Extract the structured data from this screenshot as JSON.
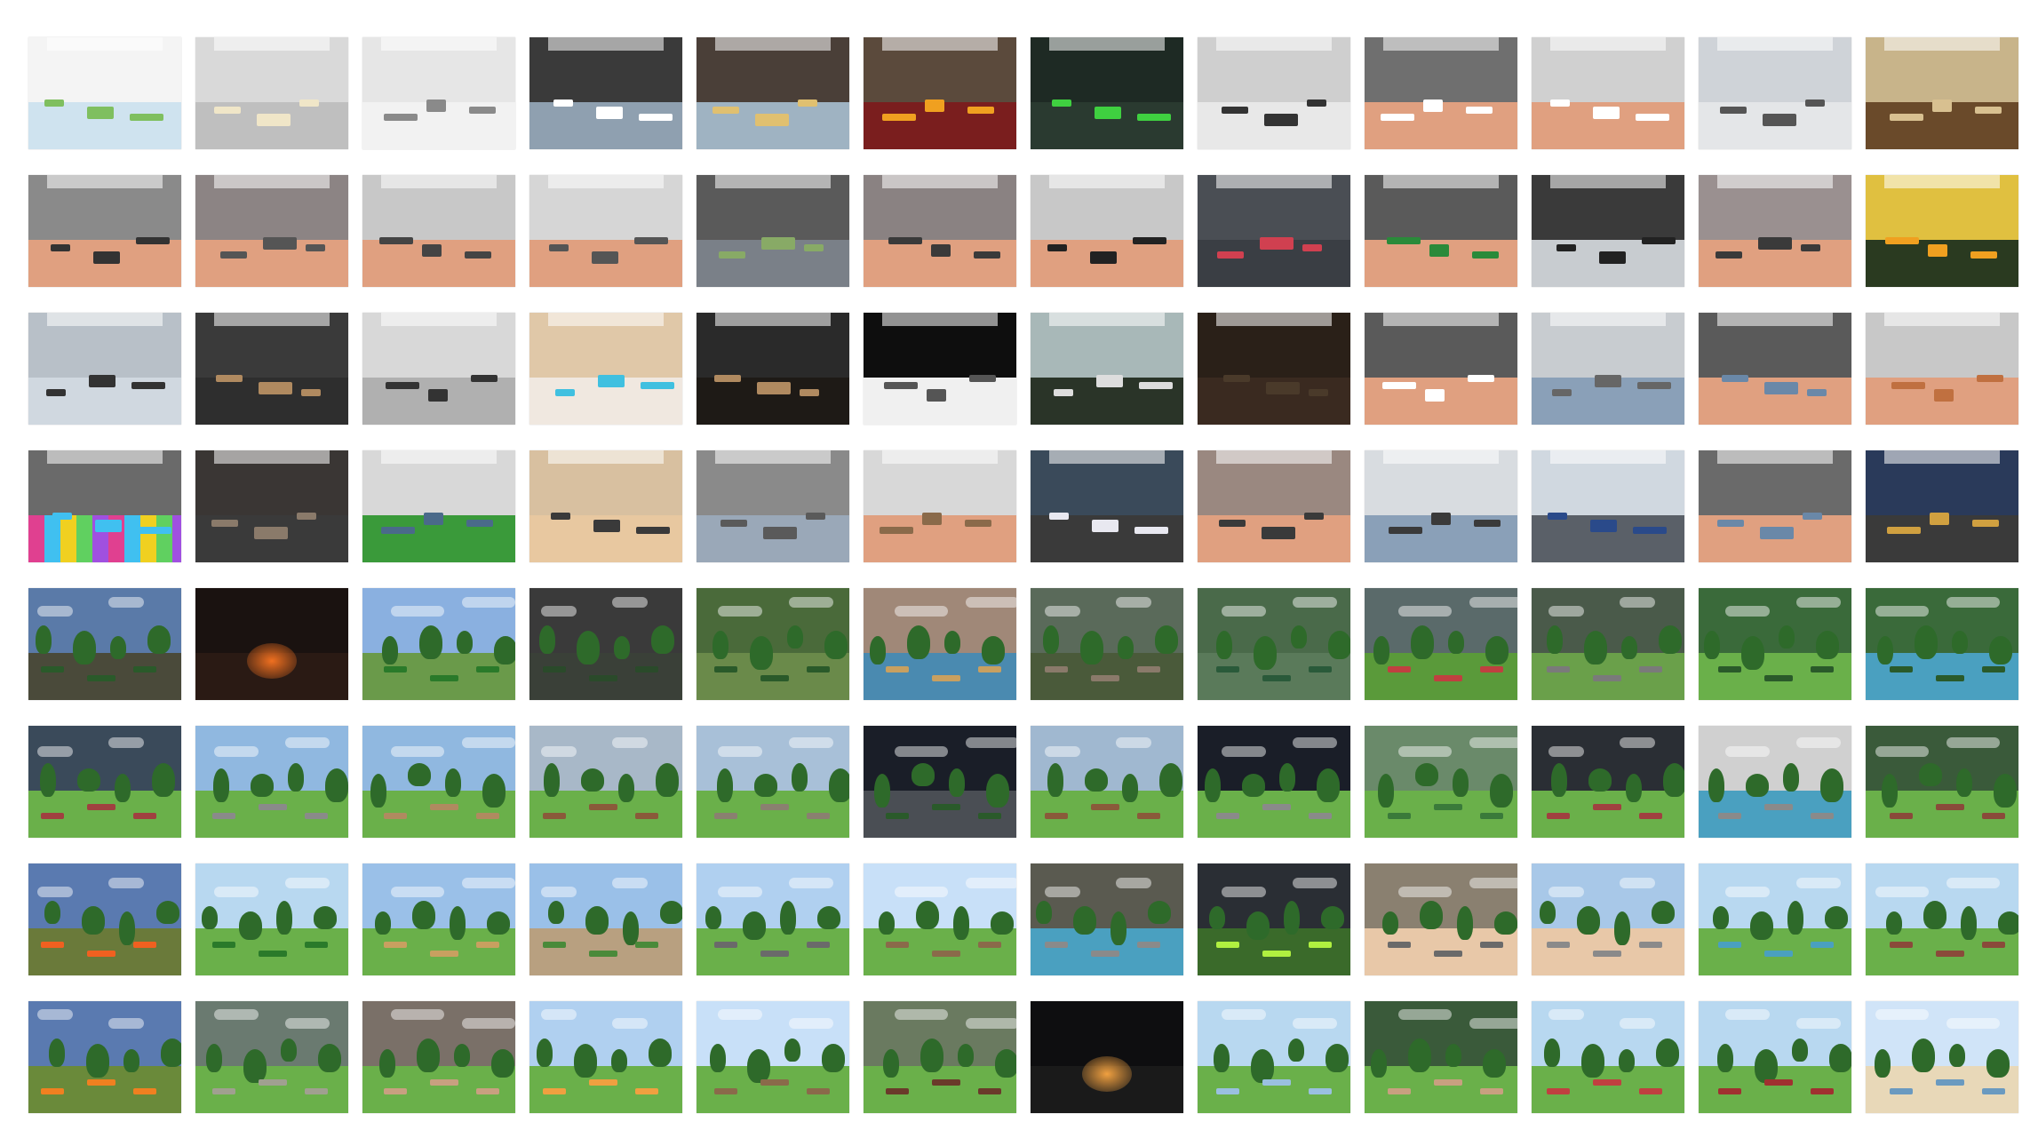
{
  "grid": {
    "rows": 8,
    "cols": 12,
    "row_themes": [
      "indoor-furnished-rooms",
      "indoor-wood-floor-rooms",
      "indoor-halls-and-pools",
      "indoor-mixed-floor-halls",
      "outdoor-forest-scenes",
      "outdoor-park-scenes",
      "outdoor-open-landscapes",
      "outdoor-campfire-and-picnic-scenes"
    ],
    "thumbnails": [
      [
        {
          "sky": "#f4f4f4",
          "ground": "#cfe3ef",
          "accent": "#7fbf5f",
          "kind": "indoor"
        },
        {
          "sky": "#d9d9d9",
          "ground": "#bfbfbf",
          "accent": "#f0e6c8",
          "kind": "indoor"
        },
        {
          "sky": "#e6e6e6",
          "ground": "#f2f2f2",
          "accent": "#8a8a8a",
          "kind": "indoor"
        },
        {
          "sky": "#3a3a3a",
          "ground": "#8fa0b0",
          "accent": "#ffffff",
          "kind": "indoor"
        },
        {
          "sky": "#4a3f38",
          "ground": "#9fb3c2",
          "accent": "#e0c070",
          "kind": "indoor"
        },
        {
          "sky": "#5b4a3c",
          "ground": "#7a1e1e",
          "accent": "#f0a020",
          "kind": "indoor"
        },
        {
          "sky": "#1e2a24",
          "ground": "#2a3a30",
          "accent": "#3fd040",
          "kind": "indoor"
        },
        {
          "sky": "#cfcfcf",
          "ground": "#e8e8e8",
          "accent": "#333333",
          "kind": "indoor"
        },
        {
          "sky": "#6f6f6f",
          "ground": "#e0a080",
          "accent": "#ffffff",
          "kind": "indoor"
        },
        {
          "sky": "#d0d0d0",
          "ground": "#e0a080",
          "accent": "#ffffff",
          "kind": "indoor"
        },
        {
          "sky": "#cfd3d8",
          "ground": "#e4e6e8",
          "accent": "#555555",
          "kind": "indoor"
        },
        {
          "sky": "#c8b48a",
          "ground": "#6a4a2a",
          "accent": "#d8c090",
          "kind": "indoor"
        }
      ],
      [
        {
          "sky": "#8a8a8a",
          "ground": "#e0a080",
          "accent": "#333333",
          "kind": "indoor"
        },
        {
          "sky": "#8c8484",
          "ground": "#e0a080",
          "accent": "#555555",
          "kind": "indoor"
        },
        {
          "sky": "#c8c8c8",
          "ground": "#e0a080",
          "accent": "#444444",
          "kind": "indoor"
        },
        {
          "sky": "#d6d6d6",
          "ground": "#e0a080",
          "accent": "#555555",
          "kind": "indoor"
        },
        {
          "sky": "#5a5a5a",
          "ground": "#7a8088",
          "accent": "#88aa66",
          "kind": "indoor"
        },
        {
          "sky": "#8a8282",
          "ground": "#e0a080",
          "accent": "#3a3a3a",
          "kind": "indoor"
        },
        {
          "sky": "#c8c8c8",
          "ground": "#e0a080",
          "accent": "#222222",
          "kind": "indoor"
        },
        {
          "sky": "#4a4e54",
          "ground": "#3a3e44",
          "accent": "#d04050",
          "kind": "indoor"
        },
        {
          "sky": "#5a5a5a",
          "ground": "#e0a080",
          "accent": "#2a8a3a",
          "kind": "indoor"
        },
        {
          "sky": "#3a3a3a",
          "ground": "#c8ccd0",
          "accent": "#222222",
          "kind": "indoor"
        },
        {
          "sky": "#9a9090",
          "ground": "#e0a080",
          "accent": "#3a3a3a",
          "kind": "indoor"
        },
        {
          "sky": "#e0c040",
          "ground": "#2a3a20",
          "accent": "#f0a020",
          "kind": "indoor"
        }
      ],
      [
        {
          "sky": "#b8c0c8",
          "ground": "#d0d8e0",
          "accent": "#333333",
          "kind": "indoor"
        },
        {
          "sky": "#3a3a3a",
          "ground": "#2e2e2e",
          "accent": "#b08a60",
          "kind": "indoor"
        },
        {
          "sky": "#d8d8d8",
          "ground": "#b0b0b0",
          "accent": "#333333",
          "kind": "indoor"
        },
        {
          "sky": "#e0c8a8",
          "ground": "#f0e8e0",
          "accent": "#40c0e0",
          "kind": "indoor"
        },
        {
          "sky": "#2a2a2a",
          "ground": "#1e1a16",
          "accent": "#b08a60",
          "kind": "indoor"
        },
        {
          "sky": "#0e0e0e",
          "ground": "#f0f0f0",
          "accent": "#555555",
          "kind": "indoor"
        },
        {
          "sky": "#a8b8b8",
          "ground": "#2a3428",
          "accent": "#dddddd",
          "kind": "indoor"
        },
        {
          "sky": "#2a2018",
          "ground": "#3a2a20",
          "accent": "#4a3a2a",
          "kind": "indoor"
        },
        {
          "sky": "#5a5a5a",
          "ground": "#e0a080",
          "accent": "#ffffff",
          "kind": "indoor"
        },
        {
          "sky": "#c8ccd0",
          "ground": "#8aa0b8",
          "accent": "#666666",
          "kind": "indoor"
        },
        {
          "sky": "#5a5a5a",
          "ground": "#e0a080",
          "accent": "#6a88a8",
          "kind": "indoor"
        },
        {
          "sky": "#c8c8c8",
          "ground": "#e0a080",
          "accent": "#c07040",
          "kind": "indoor"
        }
      ],
      [
        {
          "sky": "#6a6a6a",
          "ground": "#e05090",
          "accent": "#40c0f0",
          "kind": "checker"
        },
        {
          "sky": "#3a3634",
          "ground": "#3a3a3a",
          "accent": "#8a7a6a",
          "kind": "indoor"
        },
        {
          "sky": "#d8d8d8",
          "ground": "#3a9a3a",
          "accent": "#4a6a8a",
          "kind": "indoor"
        },
        {
          "sky": "#d8c0a0",
          "ground": "#e8c8a0",
          "accent": "#3a3a3a",
          "kind": "indoor"
        },
        {
          "sky": "#8a8a8a",
          "ground": "#9aa8b8",
          "accent": "#5a5a5a",
          "kind": "indoor"
        },
        {
          "sky": "#d8d8d8",
          "ground": "#e0a080",
          "accent": "#8a6a4a",
          "kind": "indoor"
        },
        {
          "sky": "#3a4a5a",
          "ground": "#3a3a3a",
          "accent": "#e8e8f0",
          "kind": "indoor"
        },
        {
          "sky": "#9a8880",
          "ground": "#e0a080",
          "accent": "#3a3a3a",
          "kind": "indoor"
        },
        {
          "sky": "#d8dce0",
          "ground": "#8aa0b8",
          "accent": "#3a3a3a",
          "kind": "indoor"
        },
        {
          "sky": "#d0d8e0",
          "ground": "#5a6068",
          "accent": "#2a4a8a",
          "kind": "indoor"
        },
        {
          "sky": "#6a6a6a",
          "ground": "#e0a080",
          "accent": "#6a88a8",
          "kind": "indoor"
        },
        {
          "sky": "#2a3a5a",
          "ground": "#3a3a3a",
          "accent": "#d0a040",
          "kind": "indoor"
        }
      ],
      [
        {
          "sky": "#5a7aa8",
          "ground": "#4a4a3a",
          "accent": "#2a5a2a",
          "kind": "outdoor"
        },
        {
          "sky": "#1a1210",
          "ground": "#2a1a14",
          "accent": "#f07020",
          "kind": "night"
        },
        {
          "sky": "#8ab0e0",
          "ground": "#6a9a4a",
          "accent": "#2a7a2a",
          "kind": "outdoor"
        },
        {
          "sky": "#3a3a3a",
          "ground": "#3a4038",
          "accent": "#2a4a2a",
          "kind": "outdoor"
        },
        {
          "sky": "#4a6a3a",
          "ground": "#6a8a4a",
          "accent": "#2a5a2a",
          "kind": "outdoor"
        },
        {
          "sky": "#a08878",
          "ground": "#4a8ab0",
          "accent": "#c8a060",
          "kind": "outdoor"
        },
        {
          "sky": "#5a6a5a",
          "ground": "#4a5a3a",
          "accent": "#8a7a6a",
          "kind": "outdoor"
        },
        {
          "sky": "#4a6a4a",
          "ground": "#5a7a5a",
          "accent": "#2a5a3a",
          "kind": "outdoor"
        },
        {
          "sky": "#5a6a6a",
          "ground": "#5a9a3a",
          "accent": "#c04040",
          "kind": "outdoor"
        },
        {
          "sky": "#4a5a4a",
          "ground": "#6aa04a",
          "accent": "#7a7a7a",
          "kind": "outdoor"
        },
        {
          "sky": "#3a6a3a",
          "ground": "#6ab04a",
          "accent": "#2a5a2a",
          "kind": "outdoor"
        },
        {
          "sky": "#3a6a3a",
          "ground": "#4aa0c0",
          "accent": "#2a5a2a",
          "kind": "outdoor"
        }
      ],
      [
        {
          "sky": "#3a4a5a",
          "ground": "#6ab04a",
          "accent": "#a04040",
          "kind": "outdoor"
        },
        {
          "sky": "#90b8e0",
          "ground": "#6ab04a",
          "accent": "#8a8a8a",
          "kind": "outdoor"
        },
        {
          "sky": "#90b8e0",
          "ground": "#6ab04a",
          "accent": "#b08a60",
          "kind": "outdoor"
        },
        {
          "sky": "#a8b8c8",
          "ground": "#6ab04a",
          "accent": "#8a5a3a",
          "kind": "outdoor"
        },
        {
          "sky": "#a8c0d8",
          "ground": "#6ab04a",
          "accent": "#8a8070",
          "kind": "outdoor"
        },
        {
          "sky": "#1a1e28",
          "ground": "#4a4e54",
          "accent": "#2a5a2a",
          "kind": "outdoor"
        },
        {
          "sky": "#a0b8d0",
          "ground": "#6ab04a",
          "accent": "#8a5a3a",
          "kind": "outdoor"
        },
        {
          "sky": "#1a1e28",
          "ground": "#6ab04a",
          "accent": "#8a8a8a",
          "kind": "outdoor"
        },
        {
          "sky": "#6a8a6a",
          "ground": "#6ab04a",
          "accent": "#3a7a3a",
          "kind": "outdoor"
        },
        {
          "sky": "#2a2e34",
          "ground": "#6ab04a",
          "accent": "#a04040",
          "kind": "outdoor"
        },
        {
          "sky": "#d0d0d0",
          "ground": "#4aa0c0",
          "accent": "#8a8a8a",
          "kind": "outdoor"
        },
        {
          "sky": "#3a5a3a",
          "ground": "#6ab04a",
          "accent": "#8a4a3a",
          "kind": "outdoor"
        }
      ],
      [
        {
          "sky": "#5a7ab0",
          "ground": "#6a7a3a",
          "accent": "#f06020",
          "kind": "outdoor"
        },
        {
          "sky": "#b8d8f0",
          "ground": "#6ab04a",
          "accent": "#2a7a2a",
          "kind": "outdoor"
        },
        {
          "sky": "#9ac0e8",
          "ground": "#6ab04a",
          "accent": "#c8a060",
          "kind": "outdoor"
        },
        {
          "sky": "#9ac0e8",
          "ground": "#b8a080",
          "accent": "#4a8a3a",
          "kind": "outdoor"
        },
        {
          "sky": "#b0d0f0",
          "ground": "#6ab04a",
          "accent": "#6a6a6a",
          "kind": "outdoor"
        },
        {
          "sky": "#c8e0f8",
          "ground": "#6ab04a",
          "accent": "#8a6a4a",
          "kind": "outdoor"
        },
        {
          "sky": "#5a5a50",
          "ground": "#4aa0c0",
          "accent": "#8a8a8a",
          "kind": "outdoor"
        },
        {
          "sky": "#2a2e34",
          "ground": "#3a6a2a",
          "accent": "#b0f040",
          "kind": "outdoor"
        },
        {
          "sky": "#8a8070",
          "ground": "#e8c8a8",
          "accent": "#6a6a6a",
          "kind": "outdoor"
        },
        {
          "sky": "#a8c8e8",
          "ground": "#e8c8a8",
          "accent": "#8a8a8a",
          "kind": "outdoor"
        },
        {
          "sky": "#b8d8f0",
          "ground": "#6ab04a",
          "accent": "#4aa0c0",
          "kind": "outdoor"
        },
        {
          "sky": "#b8d8f0",
          "ground": "#6ab04a",
          "accent": "#8a4a3a",
          "kind": "outdoor"
        }
      ],
      [
        {
          "sky": "#5a7ab0",
          "ground": "#6a8a3a",
          "accent": "#f08020",
          "kind": "outdoor"
        },
        {
          "sky": "#6a7a70",
          "ground": "#6ab04a",
          "accent": "#a0a090",
          "kind": "outdoor"
        },
        {
          "sky": "#7a7068",
          "ground": "#6ab04a",
          "accent": "#c8a080",
          "kind": "outdoor"
        },
        {
          "sky": "#b0d0f0",
          "ground": "#6ab04a",
          "accent": "#f0a040",
          "kind": "outdoor"
        },
        {
          "sky": "#c8e0f8",
          "ground": "#6ab04a",
          "accent": "#8a6a4a",
          "kind": "outdoor"
        },
        {
          "sky": "#6a7a60",
          "ground": "#6ab04a",
          "accent": "#6a3a2a",
          "kind": "outdoor"
        },
        {
          "sky": "#0e0e10",
          "ground": "#1a1a1a",
          "accent": "#f0a040",
          "kind": "night"
        },
        {
          "sky": "#b8d8f0",
          "ground": "#6ab04a",
          "accent": "#9ac0e0",
          "kind": "outdoor"
        },
        {
          "sky": "#3a5a3a",
          "ground": "#6ab04a",
          "accent": "#c8a080",
          "kind": "outdoor"
        },
        {
          "sky": "#b8d8f0",
          "ground": "#6ab04a",
          "accent": "#c04040",
          "kind": "outdoor"
        },
        {
          "sky": "#b8d8f0",
          "ground": "#6ab04a",
          "accent": "#a03030",
          "kind": "outdoor"
        },
        {
          "sky": "#d0e4f8",
          "ground": "#e8d8b8",
          "accent": "#6a9ac0",
          "kind": "outdoor"
        }
      ]
    ]
  }
}
